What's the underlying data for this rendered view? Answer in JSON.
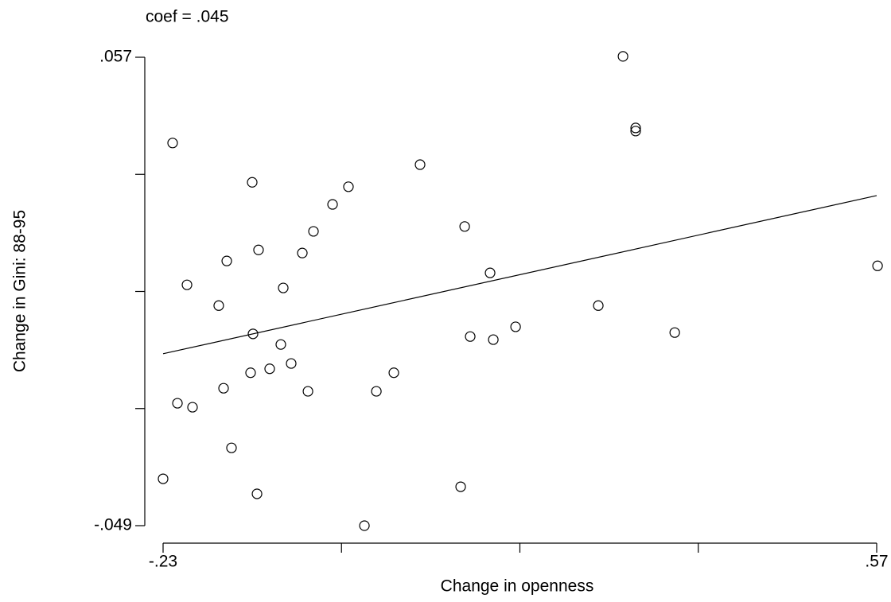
{
  "chart_data": {
    "type": "scatter",
    "title": "coef = .045",
    "x_label": "Change in openness",
    "y_label": "Change in Gini: 88-95",
    "x": [
      -0.2193,
      -0.23,
      -0.2139,
      -0.197,
      -0.2032,
      -0.1676,
      -0.1586,
      -0.1622,
      -0.1533,
      -0.1301,
      -0.123,
      -0.1292,
      -0.1319,
      -0.1247,
      -0.1105,
      -0.098,
      -0.0953,
      -0.0864,
      -0.0739,
      -0.0676,
      -0.0614,
      -0.04,
      -0.0222,
      -0.0043,
      0.0091,
      0.0287,
      0.0581,
      0.1036,
      0.1081,
      0.1143,
      0.1366,
      0.1402,
      0.1652,
      0.2579,
      0.2856,
      0.2998,
      0.2998,
      0.3436,
      0.571
    ],
    "values": [
      0.0376,
      -0.0384,
      -0.0213,
      -0.0222,
      0.0055,
      0.0008,
      0.0109,
      -0.0179,
      -0.0314,
      0.0287,
      0.0134,
      -0.0056,
      -0.0144,
      -0.0418,
      -0.0135,
      -0.008,
      0.0048,
      -0.0123,
      0.0127,
      -0.0186,
      0.0176,
      0.0237,
      0.0277,
      -0.049,
      -0.0186,
      -0.0144,
      0.0327,
      -0.0402,
      0.0187,
      -0.0062,
      0.0082,
      -0.0069,
      -0.004,
      0.0008,
      0.0572,
      0.041,
      0.0403,
      -0.0053,
      0.0098
    ],
    "fit_x": [
      -0.23,
      0.57
    ],
    "fit_y": [
      -0.0101,
      0.0257
    ],
    "color": "#000000",
    "xlim": [
      -0.23,
      0.57
    ],
    "ylim": [
      -0.049,
      0.057
    ],
    "xticks": [
      {
        "value": -0.23,
        "label": "-.23"
      },
      {
        "value": 0.57,
        "label": ".57"
      }
    ],
    "xticks_minor": [
      -0.03,
      0.17,
      0.37
    ],
    "yticks": [
      {
        "value": -0.049,
        "label": "-.049"
      },
      {
        "value": 0.057,
        "label": ".057"
      }
    ],
    "yticks_minor": [
      -0.0225,
      0.004,
      0.0305
    ]
  }
}
